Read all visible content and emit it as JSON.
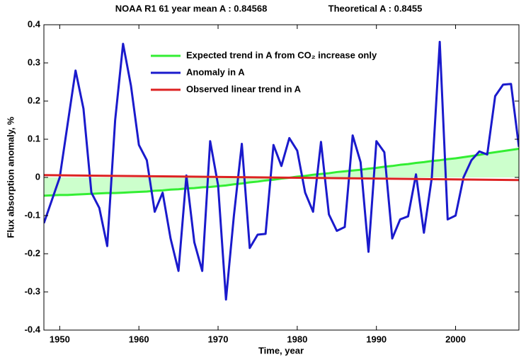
{
  "chart_data": {
    "type": "line",
    "title": "NOAA R1 61 year mean A : 0.84568",
    "title_right": "Theoretical A : 0.8455",
    "xlabel": "Time, year",
    "ylabel": "Flux absorption anomaly, %",
    "x": [
      1948,
      1949,
      1950,
      1951,
      1952,
      1953,
      1954,
      1955,
      1956,
      1957,
      1958,
      1959,
      1960,
      1961,
      1962,
      1963,
      1964,
      1965,
      1966,
      1967,
      1968,
      1969,
      1970,
      1971,
      1972,
      1973,
      1974,
      1975,
      1976,
      1977,
      1978,
      1979,
      1980,
      1981,
      1982,
      1983,
      1984,
      1985,
      1986,
      1987,
      1988,
      1989,
      1990,
      1991,
      1992,
      1993,
      1994,
      1995,
      1996,
      1997,
      1998,
      1999,
      2000,
      2001,
      2002,
      2003,
      2004,
      2005,
      2006,
      2007,
      2008
    ],
    "series": [
      {
        "name": "Expected trend in A from CO₂ increase only",
        "color": "#33ee33",
        "fill": "#ccffcc",
        "values": [
          -0.048,
          -0.047,
          -0.046,
          -0.046,
          -0.045,
          -0.044,
          -0.043,
          -0.042,
          -0.041,
          -0.041,
          -0.04,
          -0.039,
          -0.038,
          -0.037,
          -0.035,
          -0.034,
          -0.032,
          -0.031,
          -0.029,
          -0.028,
          -0.026,
          -0.025,
          -0.023,
          -0.021,
          -0.018,
          -0.016,
          -0.013,
          -0.011,
          -0.008,
          -0.006,
          -0.003,
          -0.001,
          0.002,
          0.004,
          0.007,
          0.009,
          0.011,
          0.014,
          0.016,
          0.018,
          0.02,
          0.023,
          0.025,
          0.028,
          0.03,
          0.033,
          0.035,
          0.038,
          0.04,
          0.043,
          0.045,
          0.048,
          0.05,
          0.053,
          0.056,
          0.059,
          0.063,
          0.066,
          0.069,
          0.072,
          0.075
        ]
      },
      {
        "name": "Anomaly in A",
        "color": "#1a1acc",
        "values": [
          -0.12,
          -0.06,
          0.0,
          0.14,
          0.28,
          0.18,
          -0.04,
          -0.08,
          -0.18,
          0.15,
          0.35,
          0.24,
          0.085,
          0.045,
          -0.09,
          -0.04,
          -0.16,
          -0.245,
          0.005,
          -0.17,
          -0.245,
          0.095,
          -0.02,
          -0.32,
          -0.1,
          0.088,
          -0.185,
          -0.15,
          -0.148,
          0.085,
          0.03,
          0.103,
          0.07,
          -0.04,
          -0.09,
          0.093,
          -0.097,
          -0.14,
          -0.13,
          0.11,
          0.04,
          -0.195,
          0.095,
          0.066,
          -0.16,
          -0.11,
          -0.102,
          0.008,
          -0.145,
          0.0,
          0.355,
          -0.11,
          -0.1,
          0.0,
          0.045,
          0.068,
          0.06,
          0.213,
          0.243,
          0.245,
          0.08
        ]
      },
      {
        "name": "Observed linear trend in A",
        "color": "#dd2222",
        "x": [
          1948,
          2008
        ],
        "values": [
          0.006,
          -0.007
        ]
      }
    ],
    "xlim": [
      1948,
      2008
    ],
    "xticks": [
      1950,
      1960,
      1970,
      1980,
      1990,
      2000
    ],
    "ylim": [
      -0.4,
      0.4
    ],
    "yticks": [
      -0.4,
      -0.3,
      -0.2,
      -0.1,
      0,
      0.1,
      0.2,
      0.3,
      0.4
    ],
    "legend": "upper-center"
  }
}
